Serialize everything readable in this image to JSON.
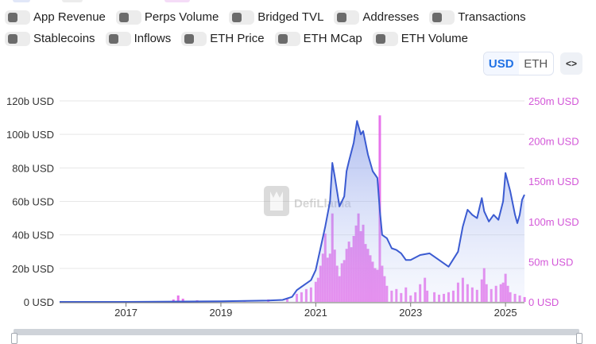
{
  "toggles_row1": [
    {
      "id": "app-revenue",
      "label": "App Revenue"
    },
    {
      "id": "perps-volume",
      "label": "Perps Volume"
    },
    {
      "id": "bridged-tvl",
      "label": "Bridged TVL"
    },
    {
      "id": "addresses",
      "label": "Addresses"
    },
    {
      "id": "transactions",
      "label": "Transactions"
    }
  ],
  "toggles_row2": [
    {
      "id": "stablecoins",
      "label": "Stablecoins"
    },
    {
      "id": "inflows",
      "label": "Inflows"
    },
    {
      "id": "eth-price",
      "label": "ETH Price"
    },
    {
      "id": "eth-mcap",
      "label": "ETH MCap"
    },
    {
      "id": "eth-volume",
      "label": "ETH Volume"
    }
  ],
  "currency": {
    "usd": "USD",
    "eth": "ETH",
    "selected": "USD"
  },
  "embed_label": "<>",
  "watermark": "DefiLlama",
  "colors": {
    "tvl_line": "#3b5bd1",
    "volume_bars": "#e35ce8",
    "left_axis_text": "#333333",
    "right_axis_text": "#d357d8",
    "grid": "#e6e6e6"
  },
  "chart_data": {
    "type": "area",
    "x_ticks": [
      "2017",
      "2019",
      "2021",
      "2023",
      "2025"
    ],
    "x_range": [
      2015.6,
      2025.4
    ],
    "y_left": {
      "ticks": [
        "0 USD",
        "20b USD",
        "40b USD",
        "60b USD",
        "80b USD",
        "100b USD",
        "120b USD"
      ],
      "range": [
        0,
        120
      ]
    },
    "y_right": {
      "ticks": [
        "0 USD",
        "50m USD",
        "100m USD",
        "150m USD",
        "200m USD",
        "250m USD"
      ],
      "range": [
        0,
        250
      ]
    },
    "grid": true,
    "series": [
      {
        "axis": "left",
        "kind": "line-area",
        "unit": "billion USD",
        "points": [
          [
            2015.6,
            0
          ],
          [
            2017.0,
            0
          ],
          [
            2018.0,
            0.2
          ],
          [
            2019.0,
            0.4
          ],
          [
            2020.0,
            0.8
          ],
          [
            2020.3,
            1.2
          ],
          [
            2020.5,
            3
          ],
          [
            2020.6,
            7
          ],
          [
            2020.7,
            9
          ],
          [
            2020.8,
            11
          ],
          [
            2020.9,
            13
          ],
          [
            2021.0,
            19
          ],
          [
            2021.1,
            32
          ],
          [
            2021.2,
            45
          ],
          [
            2021.3,
            60
          ],
          [
            2021.35,
            83
          ],
          [
            2021.4,
            75
          ],
          [
            2021.5,
            57
          ],
          [
            2021.6,
            63
          ],
          [
            2021.65,
            78
          ],
          [
            2021.7,
            84
          ],
          [
            2021.8,
            95
          ],
          [
            2021.87,
            108
          ],
          [
            2021.95,
            100
          ],
          [
            2022.0,
            102
          ],
          [
            2022.1,
            88
          ],
          [
            2022.2,
            78
          ],
          [
            2022.3,
            74
          ],
          [
            2022.35,
            55
          ],
          [
            2022.4,
            40
          ],
          [
            2022.5,
            38
          ],
          [
            2022.6,
            32
          ],
          [
            2022.7,
            31
          ],
          [
            2022.8,
            29
          ],
          [
            2022.9,
            25
          ],
          [
            2023.0,
            25
          ],
          [
            2023.2,
            28
          ],
          [
            2023.4,
            29
          ],
          [
            2023.6,
            25
          ],
          [
            2023.8,
            21
          ],
          [
            2024.0,
            30
          ],
          [
            2024.1,
            45
          ],
          [
            2024.2,
            55
          ],
          [
            2024.3,
            52
          ],
          [
            2024.4,
            50
          ],
          [
            2024.5,
            62
          ],
          [
            2024.55,
            54
          ],
          [
            2024.65,
            48
          ],
          [
            2024.75,
            52
          ],
          [
            2024.85,
            49
          ],
          [
            2024.95,
            60
          ],
          [
            2025.0,
            77
          ],
          [
            2025.1,
            66
          ],
          [
            2025.2,
            52
          ],
          [
            2025.25,
            47
          ],
          [
            2025.3,
            52
          ],
          [
            2025.35,
            61
          ],
          [
            2025.4,
            64
          ]
        ]
      },
      {
        "axis": "right",
        "kind": "bars",
        "unit": "million USD",
        "points": [
          [
            2017.2,
            0.3
          ],
          [
            2017.5,
            0.5
          ],
          [
            2017.8,
            1
          ],
          [
            2018.0,
            3
          ],
          [
            2018.1,
            8
          ],
          [
            2018.2,
            4
          ],
          [
            2018.5,
            2
          ],
          [
            2019.0,
            1
          ],
          [
            2019.5,
            2
          ],
          [
            2020.0,
            3
          ],
          [
            2020.4,
            4
          ],
          [
            2020.6,
            10
          ],
          [
            2020.7,
            12
          ],
          [
            2020.8,
            16
          ],
          [
            2020.9,
            18
          ],
          [
            2021.0,
            25
          ],
          [
            2021.05,
            30
          ],
          [
            2021.1,
            45
          ],
          [
            2021.15,
            60
          ],
          [
            2021.2,
            85
          ],
          [
            2021.25,
            55
          ],
          [
            2021.3,
            60
          ],
          [
            2021.35,
            110
          ],
          [
            2021.4,
            65
          ],
          [
            2021.45,
            45
          ],
          [
            2021.5,
            32
          ],
          [
            2021.55,
            48
          ],
          [
            2021.6,
            52
          ],
          [
            2021.65,
            66
          ],
          [
            2021.7,
            75
          ],
          [
            2021.75,
            68
          ],
          [
            2021.8,
            82
          ],
          [
            2021.85,
            95
          ],
          [
            2021.9,
            110
          ],
          [
            2021.95,
            88
          ],
          [
            2022.0,
            96
          ],
          [
            2022.05,
            72
          ],
          [
            2022.1,
            66
          ],
          [
            2022.15,
            58
          ],
          [
            2022.2,
            50
          ],
          [
            2022.25,
            42
          ],
          [
            2022.3,
            40
          ],
          [
            2022.35,
            232
          ],
          [
            2022.4,
            45
          ],
          [
            2022.45,
            32
          ],
          [
            2022.5,
            20
          ],
          [
            2022.6,
            14
          ],
          [
            2022.7,
            16
          ],
          [
            2022.8,
            11
          ],
          [
            2022.9,
            18
          ],
          [
            2023.0,
            8
          ],
          [
            2023.1,
            12
          ],
          [
            2023.2,
            22
          ],
          [
            2023.3,
            30
          ],
          [
            2023.35,
            14
          ],
          [
            2023.5,
            12
          ],
          [
            2023.6,
            9
          ],
          [
            2023.7,
            10
          ],
          [
            2023.8,
            12
          ],
          [
            2023.9,
            14
          ],
          [
            2024.0,
            24
          ],
          [
            2024.1,
            30
          ],
          [
            2024.2,
            22
          ],
          [
            2024.3,
            18
          ],
          [
            2024.4,
            15
          ],
          [
            2024.5,
            28
          ],
          [
            2024.55,
            42
          ],
          [
            2024.6,
            22
          ],
          [
            2024.7,
            16
          ],
          [
            2024.8,
            20
          ],
          [
            2024.9,
            22
          ],
          [
            2024.95,
            24
          ],
          [
            2025.0,
            35
          ],
          [
            2025.05,
            20
          ],
          [
            2025.1,
            12
          ],
          [
            2025.2,
            10
          ],
          [
            2025.3,
            8
          ],
          [
            2025.4,
            6
          ]
        ]
      }
    ]
  }
}
